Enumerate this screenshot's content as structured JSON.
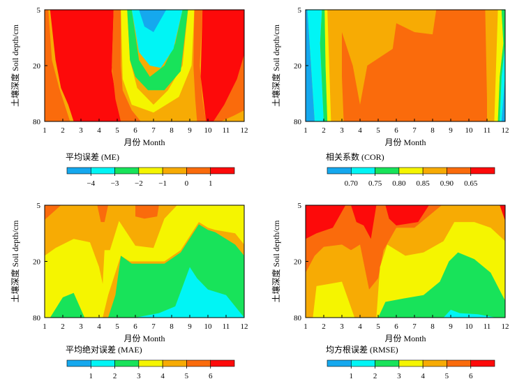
{
  "colors": {
    "c1": "#15a8ee",
    "c2": "#00f5f5",
    "c3": "#18e35a",
    "c4": "#f5f500",
    "c5": "#f7ab04",
    "c6": "#fa6b0c",
    "c7": "#fd0a0a"
  },
  "chart_data": [
    {
      "type": "heatmap",
      "panel": "me",
      "ylabel": "土壤深度 Soil depth/cm",
      "xlabel": "月份 Month",
      "x": [
        1,
        2,
        3,
        4,
        5,
        6,
        7,
        8,
        9,
        10,
        11,
        12
      ],
      "x_ticks": [
        "1",
        "2",
        "3",
        "4",
        "5",
        "6",
        "7",
        "8",
        "9",
        "10",
        "11",
        "12"
      ],
      "y_ticks": [
        "5",
        "20",
        "80"
      ],
      "legend_title": "平均误差 (ME)",
      "legend_labels": [
        "−4",
        "−3",
        "−2",
        "−1",
        "0",
        "1"
      ]
    },
    {
      "type": "heatmap",
      "panel": "cor",
      "ylabel": "土壤深度 Soil depth/cm",
      "xlabel": "月份 Month",
      "x": [
        1,
        2,
        3,
        4,
        5,
        6,
        7,
        8,
        9,
        10,
        11,
        12
      ],
      "x_ticks": [
        "1",
        "2",
        "3",
        "4",
        "5",
        "6",
        "7",
        "8",
        "9",
        "10",
        "11",
        "12"
      ],
      "y_ticks": [
        "5",
        "20",
        "80"
      ],
      "legend_title": "相关系数 (COR)",
      "legend_labels": [
        "0.70",
        "0.75",
        "0.80",
        "0.85",
        "0.90",
        "0.65"
      ]
    },
    {
      "type": "heatmap",
      "panel": "mae",
      "ylabel": "土壤深度 Soil depth/cm",
      "xlabel": "月份 Month",
      "x": [
        1,
        2,
        3,
        4,
        5,
        6,
        7,
        8,
        9,
        10,
        11,
        12
      ],
      "x_ticks": [
        "1",
        "2",
        "3",
        "4",
        "5",
        "6",
        "7",
        "8",
        "9",
        "10",
        "11",
        "12"
      ],
      "y_ticks": [
        "5",
        "20",
        "80"
      ],
      "legend_title": "平均绝对误差 (MAE)",
      "legend_labels": [
        "1",
        "2",
        "3",
        "4",
        "5",
        "6"
      ]
    },
    {
      "type": "heatmap",
      "panel": "rmse",
      "ylabel": "土壤深度 Soil depth/cm",
      "xlabel": "月份 Month",
      "x": [
        1,
        2,
        3,
        4,
        5,
        6,
        7,
        8,
        9,
        10,
        11,
        12
      ],
      "x_ticks": [
        "1",
        "2",
        "3",
        "4",
        "5",
        "6",
        "7",
        "8",
        "9",
        "10",
        "11",
        "12"
      ],
      "y_ticks": [
        "5",
        "20",
        "80"
      ],
      "legend_title": "均方根误差 (RMSE)",
      "legend_labels": [
        "1",
        "2",
        "3",
        "4",
        "5",
        "6"
      ]
    }
  ]
}
